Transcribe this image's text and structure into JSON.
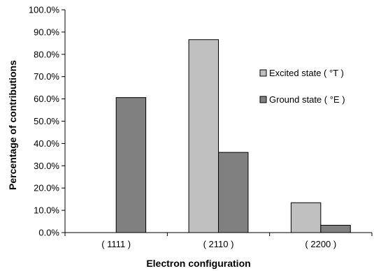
{
  "chart_data": {
    "type": "bar",
    "categories": [
      "( 1111 )",
      "( 2110 )",
      "( 2200 )"
    ],
    "series": [
      {
        "name": "Excited state ( °T )",
        "values": [
          0,
          86.6,
          13.4
        ],
        "color": "#c0c0c0"
      },
      {
        "name": "Ground state ( °E )",
        "values": [
          60.6,
          36.0,
          3.3
        ],
        "color": "#808080"
      }
    ],
    "xlabel": "Electron configuration",
    "ylabel": "Percentage of contributions",
    "ylim": [
      0,
      100
    ],
    "yticks": [
      "0.0%",
      "10.0%",
      "20.0%",
      "30.0%",
      "40.0%",
      "50.0%",
      "60.0%",
      "70.0%",
      "80.0%",
      "90.0%",
      "100.0%"
    ],
    "legend_position": "right",
    "grid": false
  }
}
